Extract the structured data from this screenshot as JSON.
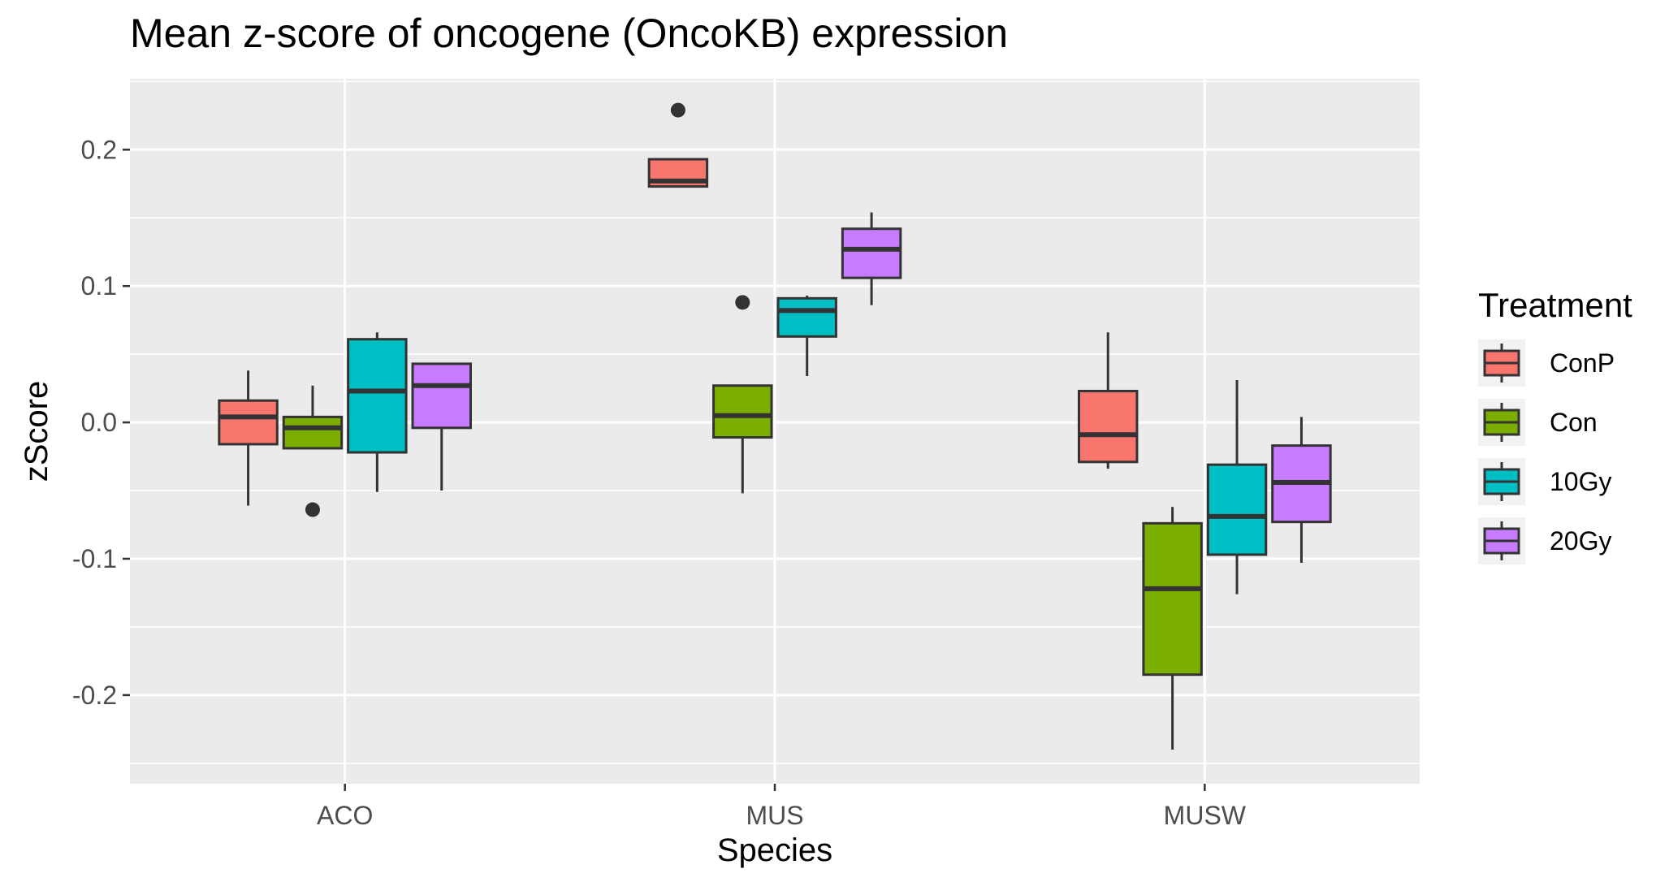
{
  "chart_data": {
    "type": "boxplot",
    "title": "Mean z-score of oncogene (OncoKB) expression",
    "xlabel": "Species",
    "ylabel": "zScore",
    "categories": [
      "ACO",
      "MUS",
      "MUSW"
    ],
    "ylim": [
      -0.265,
      0.252
    ],
    "yticks": [
      -0.2,
      -0.1,
      0.0,
      0.1,
      0.2
    ],
    "ytick_labels": [
      "-0.2",
      "-0.1",
      "0.0",
      "0.1",
      "0.2"
    ],
    "grid": true,
    "legend": {
      "title": "Treatment",
      "position": "right"
    },
    "series": [
      {
        "name": "ConP",
        "color": "#F8766D",
        "boxes": [
          {
            "category": "ACO",
            "whisker_low": -0.061,
            "q1": -0.016,
            "median": 0.004,
            "q3": 0.016,
            "whisker_high": 0.038,
            "outliers": []
          },
          {
            "category": "MUS",
            "whisker_low": 0.173,
            "q1": 0.173,
            "median": 0.177,
            "q3": 0.193,
            "whisker_high": 0.193,
            "outliers": [
              0.229
            ]
          },
          {
            "category": "MUSW",
            "whisker_low": -0.034,
            "q1": -0.029,
            "median": -0.009,
            "q3": 0.023,
            "whisker_high": 0.066,
            "outliers": []
          }
        ]
      },
      {
        "name": "Con",
        "color": "#7CAE00",
        "boxes": [
          {
            "category": "ACO",
            "whisker_low": -0.019,
            "q1": -0.019,
            "median": -0.004,
            "q3": 0.004,
            "whisker_high": 0.027,
            "outliers": [
              -0.064
            ]
          },
          {
            "category": "MUS",
            "whisker_low": -0.052,
            "q1": -0.011,
            "median": 0.005,
            "q3": 0.027,
            "whisker_high": 0.027,
            "outliers": [
              0.088
            ]
          },
          {
            "category": "MUSW",
            "whisker_low": -0.24,
            "q1": -0.185,
            "median": -0.122,
            "q3": -0.074,
            "whisker_high": -0.062,
            "outliers": []
          }
        ]
      },
      {
        "name": "10Gy",
        "color": "#00BFC4",
        "boxes": [
          {
            "category": "ACO",
            "whisker_low": -0.051,
            "q1": -0.022,
            "median": 0.023,
            "q3": 0.061,
            "whisker_high": 0.066,
            "outliers": []
          },
          {
            "category": "MUS",
            "whisker_low": 0.034,
            "q1": 0.063,
            "median": 0.082,
            "q3": 0.091,
            "whisker_high": 0.093,
            "outliers": []
          },
          {
            "category": "MUSW",
            "whisker_low": -0.126,
            "q1": -0.097,
            "median": -0.069,
            "q3": -0.031,
            "whisker_high": 0.031,
            "outliers": []
          }
        ]
      },
      {
        "name": "20Gy",
        "color": "#C77CFF",
        "boxes": [
          {
            "category": "ACO",
            "whisker_low": -0.05,
            "q1": -0.004,
            "median": 0.027,
            "q3": 0.043,
            "whisker_high": 0.043,
            "outliers": []
          },
          {
            "category": "MUS",
            "whisker_low": 0.086,
            "q1": 0.106,
            "median": 0.127,
            "q3": 0.142,
            "whisker_high": 0.154,
            "outliers": []
          },
          {
            "category": "MUSW",
            "whisker_low": -0.103,
            "q1": -0.073,
            "median": -0.044,
            "q3": -0.017,
            "whisker_high": 0.004,
            "outliers": []
          }
        ]
      }
    ]
  }
}
